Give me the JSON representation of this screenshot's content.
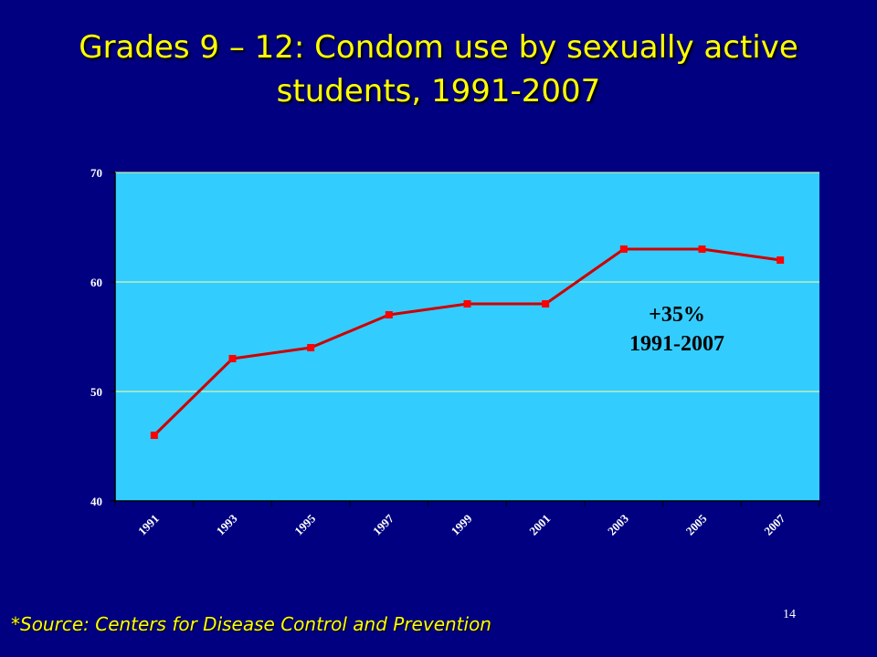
{
  "slide": {
    "title_lines": [
      "Grades 9 – 12: Condom use by sexually active",
      "students, 1991-2007"
    ],
    "source": "*Source: Centers for Disease Control and Prevention",
    "page_number": "14"
  },
  "colors": {
    "background": "#000080",
    "title": "#ffff00",
    "plot_area": "#33ccff",
    "gridline": "#ffff99",
    "series_line": "#cc0000",
    "marker": "#ff0000"
  },
  "chart_data": {
    "type": "line",
    "categories": [
      "1991",
      "1993",
      "1995",
      "1997",
      "1999",
      "2001",
      "2003",
      "2005",
      "2007"
    ],
    "series": [
      {
        "values": [
          46,
          53,
          54,
          57,
          58,
          58,
          63,
          63,
          62
        ]
      }
    ],
    "ylim": [
      40,
      70
    ],
    "yticks": [
      40,
      50,
      60,
      70
    ],
    "grid": true,
    "legend": "none",
    "annotation": [
      "+35%",
      "1991-2007"
    ]
  }
}
